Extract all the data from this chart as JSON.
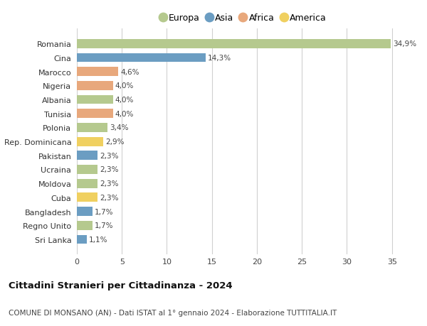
{
  "countries": [
    "Romania",
    "Cina",
    "Marocco",
    "Nigeria",
    "Albania",
    "Tunisia",
    "Polonia",
    "Rep. Dominicana",
    "Pakistan",
    "Ucraina",
    "Moldova",
    "Cuba",
    "Bangladesh",
    "Regno Unito",
    "Sri Lanka"
  ],
  "values": [
    34.9,
    14.3,
    4.6,
    4.0,
    4.0,
    4.0,
    3.4,
    2.9,
    2.3,
    2.3,
    2.3,
    2.3,
    1.7,
    1.7,
    1.1
  ],
  "labels": [
    "34,9%",
    "14,3%",
    "4,6%",
    "4,0%",
    "4,0%",
    "4,0%",
    "3,4%",
    "2,9%",
    "2,3%",
    "2,3%",
    "2,3%",
    "2,3%",
    "1,7%",
    "1,7%",
    "1,1%"
  ],
  "continents": [
    "Europa",
    "Asia",
    "Africa",
    "Africa",
    "Europa",
    "Africa",
    "Europa",
    "America",
    "Asia",
    "Europa",
    "Europa",
    "America",
    "Asia",
    "Europa",
    "Asia"
  ],
  "colors": {
    "Europa": "#b5c98e",
    "Asia": "#6b9dc2",
    "Africa": "#e8a87c",
    "America": "#f0d060"
  },
  "legend_order": [
    "Europa",
    "Asia",
    "Africa",
    "America"
  ],
  "title": "Cittadini Stranieri per Cittadinanza - 2024",
  "subtitle": "COMUNE DI MONSANO (AN) - Dati ISTAT al 1° gennaio 2024 - Elaborazione TUTTITALIA.IT",
  "xlim": [
    0,
    37
  ],
  "xticks": [
    0,
    5,
    10,
    15,
    20,
    25,
    30,
    35
  ],
  "background_color": "#ffffff",
  "grid_color": "#d0d0d0",
  "bar_height": 0.65,
  "label_fontsize": 7.5,
  "ytick_fontsize": 8,
  "xtick_fontsize": 8,
  "title_fontsize": 9.5,
  "subtitle_fontsize": 7.5,
  "legend_fontsize": 9
}
